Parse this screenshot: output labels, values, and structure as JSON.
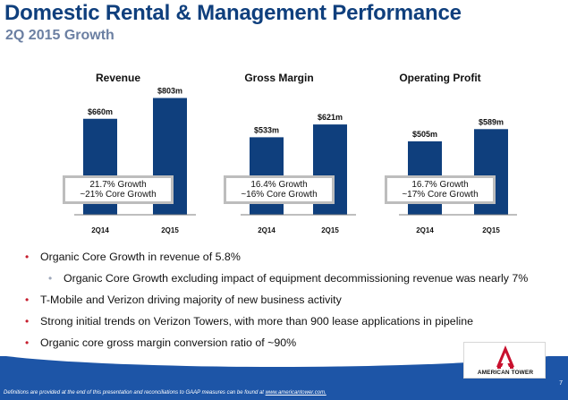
{
  "slide": {
    "title": "Domestic Rental & Management Performance",
    "subtitle": "2Q 2015 Growth",
    "page_number": "7"
  },
  "colors": {
    "title": "#0f3f7d",
    "bar": "#0f3f7d",
    "bullet": "#c61e2e",
    "band": "#1d55a7",
    "logo_red": "#c8102e"
  },
  "chart_data": [
    {
      "type": "bar",
      "title": "Revenue",
      "categories": [
        "2Q14",
        "2Q15"
      ],
      "values": [
        660,
        803
      ],
      "data_labels": [
        "$660m",
        "$803m"
      ],
      "unit": "$m",
      "growth": [
        "21.7% Growth",
        "~21% Core Growth"
      ]
    },
    {
      "type": "bar",
      "title": "Gross Margin",
      "categories": [
        "2Q14",
        "2Q15"
      ],
      "values": [
        533,
        621
      ],
      "data_labels": [
        "$533m",
        "$621m"
      ],
      "unit": "$m",
      "growth": [
        "16.4% Growth",
        "~16% Core Growth"
      ]
    },
    {
      "type": "bar",
      "title": "Operating Profit",
      "categories": [
        "2Q14",
        "2Q15"
      ],
      "values": [
        505,
        589
      ],
      "data_labels": [
        "$505m",
        "$589m"
      ],
      "unit": "$m",
      "growth": [
        "16.7% Growth",
        "~17% Core Growth"
      ]
    }
  ],
  "bullets": [
    {
      "level": 1,
      "text": "Organic Core Growth in revenue of 5.8%"
    },
    {
      "level": 2,
      "text": "Organic Core Growth excluding impact of equipment decommissioning revenue was nearly 7%"
    },
    {
      "level": 1,
      "text": "T-Mobile and Verizon driving majority of new business activity"
    },
    {
      "level": 1,
      "text": "Strong initial trends on Verizon Towers, with more than 900 lease applications in pipeline"
    },
    {
      "level": 1,
      "text": "Organic core gross margin conversion ratio of ~90%"
    }
  ],
  "footer": {
    "text": "Definitions are provided at the end of this presentation and reconciliations to GAAP measures can be found at ",
    "link": "www.americantower.com."
  },
  "logo": {
    "text": "AMERICAN TOWER",
    "icon": "american-tower-logo-icon"
  }
}
